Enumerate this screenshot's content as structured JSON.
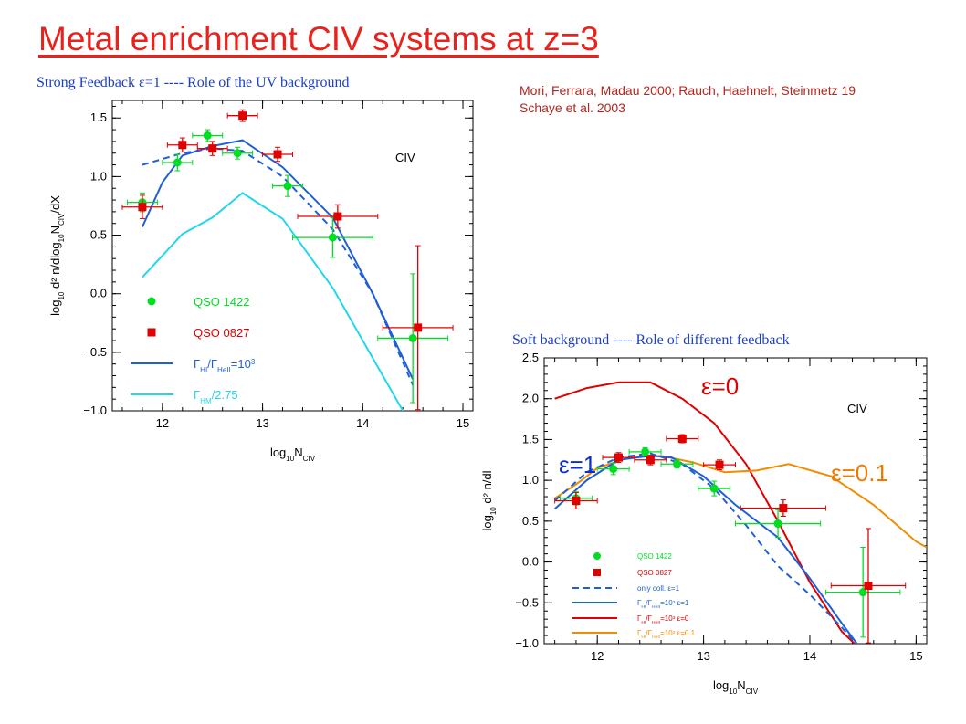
{
  "slide": {
    "title": "Metal enrichment CIV systems at z=3",
    "subtitle_left": "Strong Feedback ε=1 ---- Role of the UV background",
    "subtitle_right": "Soft background ---- Role of different feedback",
    "references": [
      "Mori, Ferrara, Madau 2000; Rauch, Haehnelt, Steinmetz 19",
      "Schaye et al. 2003"
    ],
    "colors": {
      "title": "#e8221c",
      "subtitles": "#1a3fc8",
      "references": "#b3261e"
    }
  },
  "chart_data": [
    {
      "type": "line",
      "annotation": "CIV",
      "xlabel": "log10NCIV",
      "ylabel": "log10 d2 n/dlog10NCIV/dX",
      "xlim": [
        11.5,
        15.1
      ],
      "ylim": [
        -1.0,
        1.65
      ],
      "xticks": [
        12,
        13,
        14,
        15
      ],
      "yticks": [
        -1.0,
        -0.5,
        0.0,
        0.5,
        1.0,
        1.5
      ],
      "legend": [
        {
          "text": "QSO 1422",
          "kind": "marker",
          "shape": "circle",
          "color": "#00dd22"
        },
        {
          "text": "QSO 0827",
          "kind": "marker",
          "shape": "square",
          "color": "#e00000"
        },
        {
          "text": "ΓHI/ΓHeII=10³",
          "kind": "line",
          "style": "solid",
          "color": "#1f5fd6"
        },
        {
          "text": "ΓHM/2.75",
          "kind": "line",
          "style": "solid",
          "color": "#22d6ee"
        }
      ],
      "series": [
        {
          "style": "dashed",
          "color": "#1f5fd6",
          "x": [
            11.8,
            12.2,
            12.5,
            12.8,
            13.2,
            13.7,
            14.1,
            14.5
          ],
          "y": [
            1.1,
            1.2,
            1.24,
            1.22,
            1.0,
            0.55,
            0.0,
            -0.78
          ]
        },
        {
          "style": "solid",
          "color": "#1f5fd6",
          "x": [
            11.8,
            12.0,
            12.2,
            12.5,
            12.8,
            13.2,
            13.7,
            14.1,
            14.5
          ],
          "y": [
            0.57,
            0.95,
            1.18,
            1.26,
            1.31,
            1.08,
            0.65,
            0.0,
            -0.73
          ]
        },
        {
          "style": "solid",
          "color": "#22d6ee",
          "x": [
            11.8,
            12.2,
            12.5,
            12.8,
            13.2,
            13.7,
            14.1,
            14.5
          ],
          "y": [
            0.14,
            0.51,
            0.65,
            0.86,
            0.64,
            0.05,
            -0.55,
            -1.15
          ]
        }
      ],
      "points": [
        {
          "marker": "circle",
          "color": "#00dd22",
          "x": [
            11.8,
            12.15,
            12.45,
            12.75,
            13.25,
            13.7,
            14.5
          ],
          "y": [
            0.78,
            1.12,
            1.35,
            1.2,
            0.92,
            0.48,
            -0.38
          ],
          "xerr": [
            0.15,
            0.15,
            0.15,
            0.15,
            0.15,
            0.4,
            0.35
          ],
          "yerr": [
            0.08,
            0.07,
            0.05,
            0.05,
            0.09,
            0.17,
            0.55
          ]
        },
        {
          "marker": "square",
          "color": "#e00000",
          "x": [
            11.8,
            12.2,
            12.5,
            12.8,
            13.15,
            13.75,
            14.55
          ],
          "y": [
            0.74,
            1.27,
            1.24,
            1.52,
            1.19,
            0.66,
            -0.29
          ],
          "xerr": [
            0.2,
            0.15,
            0.15,
            0.15,
            0.15,
            0.4,
            0.35
          ],
          "yerr": [
            0.1,
            0.06,
            0.06,
            0.05,
            0.06,
            0.1,
            0.7
          ]
        }
      ]
    },
    {
      "type": "line",
      "annotation": "CIV",
      "labels": [
        {
          "text": "ε=0",
          "color": "#e00000"
        },
        {
          "text": "ε=1",
          "color": "#0a2dd0"
        },
        {
          "text": "ε=0.1",
          "color": "#f07a00"
        }
      ],
      "xlabel": "log10NCIV",
      "ylabel": "log10 d2 n/dl",
      "xlim": [
        11.5,
        15.1
      ],
      "ylim": [
        -1.0,
        2.5
      ],
      "xticks": [
        12,
        13,
        14,
        15
      ],
      "yticks": [
        -1.0,
        -0.5,
        0.0,
        0.5,
        1.0,
        1.5,
        2.0,
        2.5
      ],
      "legend": [
        {
          "text": "QSO 1422",
          "kind": "marker",
          "shape": "circle",
          "color": "#00dd22"
        },
        {
          "text": "QSO 0827",
          "kind": "marker",
          "shape": "square",
          "color": "#e00000"
        },
        {
          "text": "only coll. ε=1",
          "kind": "line",
          "style": "dashed",
          "color": "#1f5fd6"
        },
        {
          "text": "ΓHI/ΓHeII=10³ ε=1",
          "kind": "line",
          "style": "solid",
          "color": "#1f5fd6"
        },
        {
          "text": "ΓHI/ΓHeII=10³ ε=0",
          "kind": "line",
          "style": "solid",
          "color": "#e00000"
        },
        {
          "text": "ΓHI/ΓHeII=10³ ε=0.1",
          "kind": "line",
          "style": "solid",
          "color": "#f08c00"
        }
      ],
      "series": [
        {
          "name": "ε=0",
          "style": "solid",
          "color": "#e00000",
          "x": [
            11.6,
            11.9,
            12.2,
            12.5,
            12.8,
            13.1,
            13.4,
            13.7,
            14.0,
            14.3,
            14.5
          ],
          "y": [
            2.0,
            2.13,
            2.2,
            2.2,
            2.0,
            1.7,
            1.2,
            0.5,
            -0.25,
            -0.85,
            -1.1
          ]
        },
        {
          "name": "ε=0.1",
          "style": "solid",
          "color": "#f08c00",
          "x": [
            11.6,
            11.8,
            12.0,
            12.3,
            12.6,
            12.9,
            13.2,
            13.5,
            13.8,
            14.2,
            14.6,
            15.0,
            15.1
          ],
          "y": [
            0.78,
            0.95,
            1.15,
            1.28,
            1.3,
            1.22,
            1.1,
            1.12,
            1.2,
            1.05,
            0.7,
            0.25,
            0.18
          ]
        },
        {
          "name": "ε=1",
          "style": "solid",
          "color": "#1f5fd6",
          "x": [
            11.6,
            11.9,
            12.2,
            12.5,
            12.7,
            13.0,
            13.3,
            13.7,
            14.0,
            14.3,
            14.5
          ],
          "y": [
            0.65,
            1.0,
            1.25,
            1.3,
            1.28,
            1.05,
            0.7,
            0.3,
            -0.2,
            -0.75,
            -1.1
          ]
        },
        {
          "name": "only coll. ε=1",
          "style": "dashed",
          "color": "#1f5fd6",
          "x": [
            11.6,
            11.9,
            12.2,
            12.5,
            12.8,
            13.1,
            13.4,
            13.7,
            14.0,
            14.3,
            14.5
          ],
          "y": [
            0.75,
            1.1,
            1.28,
            1.33,
            1.2,
            0.9,
            0.45,
            -0.05,
            -0.4,
            -0.8,
            -1.1
          ]
        }
      ],
      "points": [
        {
          "marker": "circle",
          "color": "#00dd22",
          "x": [
            11.8,
            12.15,
            12.45,
            12.75,
            13.1,
            13.7,
            14.5
          ],
          "y": [
            0.78,
            1.14,
            1.35,
            1.2,
            0.9,
            0.47,
            -0.37
          ],
          "xerr": [
            0.15,
            0.15,
            0.15,
            0.15,
            0.15,
            0.4,
            0.35
          ],
          "yerr": [
            0.08,
            0.07,
            0.05,
            0.05,
            0.09,
            0.17,
            0.55
          ]
        },
        {
          "marker": "square",
          "color": "#e00000",
          "x": [
            11.8,
            12.2,
            12.5,
            12.8,
            13.15,
            13.75,
            14.55
          ],
          "y": [
            0.75,
            1.28,
            1.25,
            1.51,
            1.19,
            0.66,
            -0.29
          ],
          "xerr": [
            0.2,
            0.15,
            0.15,
            0.15,
            0.15,
            0.4,
            0.35
          ],
          "yerr": [
            0.1,
            0.06,
            0.06,
            0.05,
            0.06,
            0.1,
            0.7
          ]
        }
      ]
    }
  ]
}
